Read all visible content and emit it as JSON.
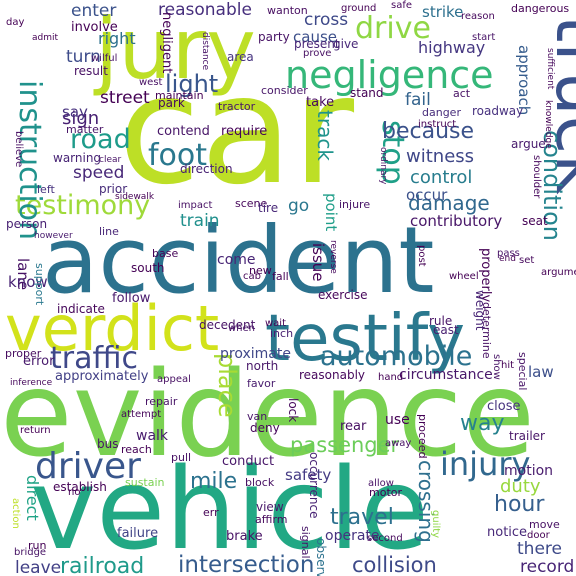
{
  "word_cloud": {
    "words": [
      {
        "text": "car",
        "color": "#bddf26"
      },
      {
        "text": "evidence",
        "color": "#7ad151"
      },
      {
        "text": "vehicle",
        "color": "#22a884"
      },
      {
        "text": "accident",
        "color": "#2c728e"
      },
      {
        "text": "jury",
        "color": "#bddf26"
      },
      {
        "text": "verdict",
        "color": "#d2e21b"
      },
      {
        "text": "testify",
        "color": "#2a788e"
      },
      {
        "text": "truck",
        "color": "#3b528b"
      },
      {
        "text": "negligence",
        "color": "#35b779"
      },
      {
        "text": "driver",
        "color": "#39568c"
      },
      {
        "text": "injury",
        "color": "#31688e"
      },
      {
        "text": "traffic",
        "color": "#3f4889"
      },
      {
        "text": "testimony",
        "color": "#9fda3a"
      },
      {
        "text": "instruction",
        "color": "#20928c"
      },
      {
        "text": "automobile",
        "color": "#2c728e"
      },
      {
        "text": "foot",
        "color": "#2a788e"
      },
      {
        "text": "road",
        "color": "#1e9b8a"
      },
      {
        "text": "drive",
        "color": "#8fd744"
      },
      {
        "text": "stop",
        "color": "#1fa088"
      },
      {
        "text": "because",
        "color": "#3b528b"
      },
      {
        "text": "light",
        "color": "#39568c"
      },
      {
        "text": "condition",
        "color": "#25848e"
      },
      {
        "text": "railroad",
        "color": "#1f9a8a"
      },
      {
        "text": "intersection",
        "color": "#365c8d"
      },
      {
        "text": "collision",
        "color": "#3e4a89"
      },
      {
        "text": "passenger",
        "color": "#6ccd5a"
      },
      {
        "text": "mile",
        "color": "#2c728e"
      },
      {
        "text": "damage",
        "color": "#31688e"
      },
      {
        "text": "witness",
        "color": "#3f4788"
      },
      {
        "text": "control",
        "color": "#287d8e"
      },
      {
        "text": "speed",
        "color": "#482878"
      },
      {
        "text": "hour",
        "color": "#355f8d"
      },
      {
        "text": "travel",
        "color": "#2d708e"
      },
      {
        "text": "place",
        "color": "#a8db34"
      },
      {
        "text": "way",
        "color": "#26828e"
      },
      {
        "text": "crossing",
        "color": "#2e6f8e"
      },
      {
        "text": "track",
        "color": "#1f948c"
      },
      {
        "text": "duty",
        "color": "#98d83e"
      },
      {
        "text": "train",
        "color": "#21908d"
      },
      {
        "text": "reasonable",
        "color": "#472f7d"
      },
      {
        "text": "sign",
        "color": "#482173"
      },
      {
        "text": "turn",
        "color": "#3e4c8a"
      },
      {
        "text": "right",
        "color": "#2d708e"
      },
      {
        "text": "enter",
        "color": "#3b528b"
      },
      {
        "text": "cross",
        "color": "#3e4989"
      },
      {
        "text": "lane",
        "color": "#471365"
      },
      {
        "text": "go",
        "color": "#2a778e"
      },
      {
        "text": "fail",
        "color": "#33638d"
      },
      {
        "text": "occur",
        "color": "#3b518b"
      },
      {
        "text": "street",
        "color": "#440154"
      },
      {
        "text": "highway",
        "color": "#453781"
      },
      {
        "text": "motion",
        "color": "#481b6d"
      },
      {
        "text": "there",
        "color": "#3e4a89"
      },
      {
        "text": "leave",
        "color": "#424086"
      },
      {
        "text": "direct",
        "color": "#20a386"
      },
      {
        "text": "safety",
        "color": "#443a83"
      },
      {
        "text": "record",
        "color": "#482576"
      },
      {
        "text": "law",
        "color": "#3c4f8a"
      },
      {
        "text": "issue",
        "color": "#440154"
      },
      {
        "text": "know",
        "color": "#482374"
      },
      {
        "text": "proximate",
        "color": "#3f4788"
      },
      {
        "text": "operate",
        "color": "#46337f"
      },
      {
        "text": "circumstance",
        "color": "#48186a"
      },
      {
        "text": "contributory",
        "color": "#481668"
      },
      {
        "text": "approximately",
        "color": "#424086"
      },
      {
        "text": "say",
        "color": "#46307e"
      },
      {
        "text": "strike",
        "color": "#2d708e"
      },
      {
        "text": "approach",
        "color": "#365c8d"
      },
      {
        "text": "cause",
        "color": "#3c4f8a"
      },
      {
        "text": "come",
        "color": "#482576"
      },
      {
        "text": "point",
        "color": "#1f9e89"
      },
      {
        "text": "direction",
        "color": "#482173"
      },
      {
        "text": "seat",
        "color": "#440154"
      },
      {
        "text": "warning",
        "color": "#482475"
      },
      {
        "text": "walk",
        "color": "#481c6e"
      },
      {
        "text": "failure",
        "color": "#414487"
      },
      {
        "text": "brake",
        "color": "#471164"
      },
      {
        "text": "close",
        "color": "#46327e"
      },
      {
        "text": "conduct",
        "color": "#481769"
      },
      {
        "text": "notice",
        "color": "#482979"
      },
      {
        "text": "move",
        "color": "#471063"
      },
      {
        "text": "take",
        "color": "#46085c"
      },
      {
        "text": "area",
        "color": "#46337f"
      },
      {
        "text": "give",
        "color": "#482878"
      },
      {
        "text": "matter",
        "color": "#481467"
      },
      {
        "text": "stand",
        "color": "#440154"
      },
      {
        "text": "contend",
        "color": "#481668"
      },
      {
        "text": "require",
        "color": "#450457"
      },
      {
        "text": "left",
        "color": "#46327e"
      },
      {
        "text": "prior",
        "color": "#472c7a"
      },
      {
        "text": "line",
        "color": "#482677"
      },
      {
        "text": "follow",
        "color": "#481a6c"
      },
      {
        "text": "south",
        "color": "#440154"
      },
      {
        "text": "north",
        "color": "#481769"
      },
      {
        "text": "exercise",
        "color": "#46075a"
      },
      {
        "text": "rule",
        "color": "#471365"
      },
      {
        "text": "east",
        "color": "#482071"
      },
      {
        "text": "properly",
        "color": "#440154"
      },
      {
        "text": "weight",
        "color": "#482475"
      },
      {
        "text": "rear",
        "color": "#471063"
      },
      {
        "text": "use",
        "color": "#440154"
      },
      {
        "text": "view",
        "color": "#481769"
      },
      {
        "text": "favor",
        "color": "#481c6e"
      },
      {
        "text": "deny",
        "color": "#450559"
      },
      {
        "text": "base",
        "color": "#450457"
      },
      {
        "text": "person",
        "color": "#482173"
      },
      {
        "text": "indicate",
        "color": "#46075a"
      },
      {
        "text": "error",
        "color": "#481a6c"
      },
      {
        "text": "proper",
        "color": "#470d60"
      },
      {
        "text": "bus",
        "color": "#471365"
      },
      {
        "text": "reasonably",
        "color": "#46085c"
      },
      {
        "text": "occurrence",
        "color": "#482374"
      },
      {
        "text": "negligent",
        "color": "#440154"
      },
      {
        "text": "involve",
        "color": "#440154"
      },
      {
        "text": "result",
        "color": "#471063"
      },
      {
        "text": "party",
        "color": "#471365"
      },
      {
        "text": "present",
        "color": "#482677"
      },
      {
        "text": "maintain",
        "color": "#440154"
      },
      {
        "text": "park",
        "color": "#46085c"
      },
      {
        "text": "consider",
        "color": "#481769"
      },
      {
        "text": "act",
        "color": "#471164"
      },
      {
        "text": "roadway",
        "color": "#46307e"
      },
      {
        "text": "danger",
        "color": "#472d7b"
      },
      {
        "text": "argue",
        "color": "#481b6d"
      },
      {
        "text": "sufficient",
        "color": "#46085c"
      },
      {
        "text": "dangerous",
        "color": "#440154"
      },
      {
        "text": "start",
        "color": "#481467"
      },
      {
        "text": "safe",
        "color": "#46085c"
      },
      {
        "text": "wanton",
        "color": "#470e61"
      },
      {
        "text": "tractor",
        "color": "#481668"
      },
      {
        "text": "west",
        "color": "#471063"
      },
      {
        "text": "impact",
        "color": "#471164"
      },
      {
        "text": "scene",
        "color": "#46075a"
      },
      {
        "text": "tire",
        "color": "#482878"
      },
      {
        "text": "injure",
        "color": "#481467"
      },
      {
        "text": "however",
        "color": "#481b6d"
      },
      {
        "text": "support",
        "color": "#2a788e"
      },
      {
        "text": "decedent",
        "color": "#471365"
      },
      {
        "text": "fall",
        "color": "#450457"
      },
      {
        "text": "new",
        "color": "#440154"
      },
      {
        "text": "cab",
        "color": "#46075a"
      },
      {
        "text": "inch",
        "color": "#482071"
      },
      {
        "text": "wait",
        "color": "#440154"
      },
      {
        "text": "when",
        "color": "#481467"
      },
      {
        "text": "lock",
        "color": "#46085c"
      },
      {
        "text": "hand",
        "color": "#440154"
      },
      {
        "text": "appeal",
        "color": "#471063"
      },
      {
        "text": "repair",
        "color": "#481467"
      },
      {
        "text": "attempt",
        "color": "#46075a"
      },
      {
        "text": "reach",
        "color": "#440154"
      },
      {
        "text": "pull",
        "color": "#471164"
      },
      {
        "text": "van",
        "color": "#481668"
      },
      {
        "text": "err",
        "color": "#440154"
      },
      {
        "text": "affirm",
        "color": "#46085c"
      },
      {
        "text": "signal",
        "color": "#481769"
      },
      {
        "text": "observe",
        "color": "#2c728e"
      },
      {
        "text": "establish",
        "color": "#440154"
      },
      {
        "text": "sustain",
        "color": "#7ad151"
      },
      {
        "text": "block",
        "color": "#471063"
      },
      {
        "text": "allow",
        "color": "#481467"
      },
      {
        "text": "motor",
        "color": "#440154"
      },
      {
        "text": "guilty",
        "color": "#8fd744"
      },
      {
        "text": "second",
        "color": "#46085c"
      },
      {
        "text": "away",
        "color": "#471164"
      },
      {
        "text": "door",
        "color": "#440154"
      },
      {
        "text": "trailer",
        "color": "#481668"
      },
      {
        "text": "run",
        "color": "#440154"
      },
      {
        "text": "bridge",
        "color": "#471365"
      },
      {
        "text": "action",
        "color": "#bddf26"
      },
      {
        "text": "return",
        "color": "#440154"
      },
      {
        "text": "prove",
        "color": "#471063"
      },
      {
        "text": "ground",
        "color": "#440154"
      },
      {
        "text": "reason",
        "color": "#46085c"
      },
      {
        "text": "admit",
        "color": "#440154"
      },
      {
        "text": "wilful",
        "color": "#471365"
      },
      {
        "text": "distance",
        "color": "#481467"
      },
      {
        "text": "day",
        "color": "#440154"
      },
      {
        "text": "believe",
        "color": "#471063"
      },
      {
        "text": "knowledge",
        "color": "#440154"
      },
      {
        "text": "shoulder",
        "color": "#46085c"
      },
      {
        "text": "instruct",
        "color": "#440154"
      },
      {
        "text": "ordinary",
        "color": "#471365"
      },
      {
        "text": "clear",
        "color": "#481467"
      },
      {
        "text": "sidewalk",
        "color": "#440154"
      },
      {
        "text": "reverse",
        "color": "#46085c"
      },
      {
        "text": "post",
        "color": "#440154"
      },
      {
        "text": "determine",
        "color": "#471063"
      },
      {
        "text": "wheel",
        "color": "#440154"
      },
      {
        "text": "pass",
        "color": "#481467"
      },
      {
        "text": "end",
        "color": "#440154"
      },
      {
        "text": "set",
        "color": "#46085c"
      },
      {
        "text": "argument",
        "color": "#440154"
      },
      {
        "text": "show",
        "color": "#471365"
      },
      {
        "text": "hit",
        "color": "#440154"
      },
      {
        "text": "special",
        "color": "#481467"
      },
      {
        "text": "proceed",
        "color": "#440154"
      },
      {
        "text": "inference",
        "color": "#46085c"
      },
      {
        "text": "no",
        "color": "#440154"
      }
    ]
  }
}
